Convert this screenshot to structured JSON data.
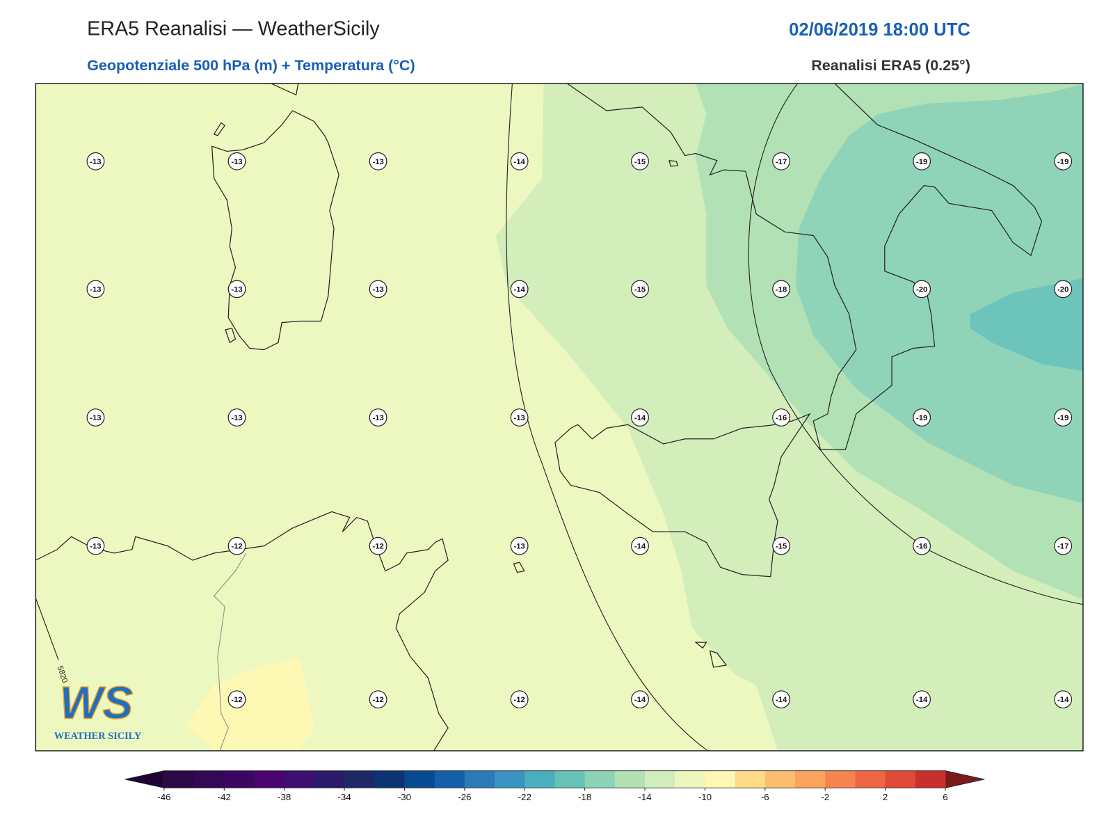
{
  "header": {
    "title": "ERA5 Reanalisi — WeatherSicily",
    "date": "02/06/2019 18:00 UTC",
    "subtitle": "Geopotenziale 500 hPa (m) + Temperatura (°C)",
    "model": "Reanalisi ERA5 (0.25°)"
  },
  "map": {
    "temperature_rows": [
      [
        -13,
        -13,
        -13,
        -14,
        -15,
        -17,
        -19,
        -19
      ],
      [
        -13,
        -13,
        -13,
        -14,
        -15,
        -18,
        -20,
        -20
      ],
      [
        -13,
        -13,
        -13,
        -13,
        -14,
        -16,
        -19,
        -19
      ],
      [
        -13,
        -12,
        -12,
        -13,
        -14,
        -15,
        -16,
        -17
      ],
      [
        null,
        -12,
        -12,
        -12,
        -14,
        -14,
        -14,
        -14
      ]
    ],
    "contour_label": "5820"
  },
  "colorbar": {
    "ticks": [
      -46,
      -42,
      -38,
      -34,
      -30,
      -26,
      -22,
      -18,
      -14,
      -10,
      -6,
      -2,
      2,
      6
    ],
    "colors": [
      "#2b0a45",
      "#330854",
      "#3d0663",
      "#4a0570",
      "#3b1070",
      "#2b1a6b",
      "#1e2866",
      "#0c3472",
      "#084a8f",
      "#1460a8",
      "#2a7ab8",
      "#3a93c2",
      "#4aaebd",
      "#66c2b5",
      "#8dd3b8",
      "#b1e0b5",
      "#d1edbb",
      "#ebf7bf",
      "#fff7b3",
      "#fedb87",
      "#fdbe70",
      "#fca35e",
      "#f7844e",
      "#ee6644",
      "#e04a37",
      "#c9302c"
    ],
    "under_color": "#1f0335",
    "over_color": "#7a1a1a"
  },
  "logo": {
    "mark": "WS",
    "text": "WEATHER SICILY"
  }
}
